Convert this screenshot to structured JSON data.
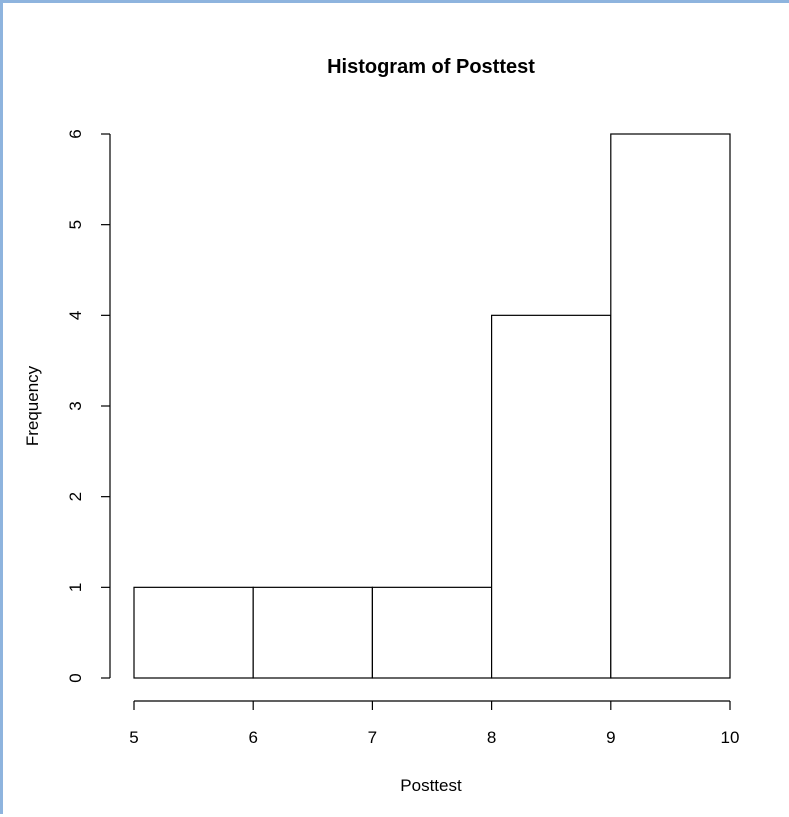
{
  "chart_data": {
    "type": "bar",
    "title": "Histogram of Posttest",
    "xlabel": "Posttest",
    "ylabel": "Frequency",
    "bins": [
      {
        "start": 5,
        "end": 6,
        "count": 1
      },
      {
        "start": 6,
        "end": 7,
        "count": 1
      },
      {
        "start": 7,
        "end": 8,
        "count": 1
      },
      {
        "start": 8,
        "end": 9,
        "count": 4
      },
      {
        "start": 9,
        "end": 10,
        "count": 6
      }
    ],
    "xlim": [
      5,
      10
    ],
    "ylim": [
      0,
      6
    ],
    "x_ticks": [
      5,
      6,
      7,
      8,
      9,
      10
    ],
    "y_ticks": [
      0,
      1,
      2,
      3,
      4,
      5,
      6
    ],
    "grid": false,
    "bar_fill": "#ffffff",
    "bar_stroke": "#000000"
  },
  "frame": {
    "accent_color": "#8eb4de"
  }
}
